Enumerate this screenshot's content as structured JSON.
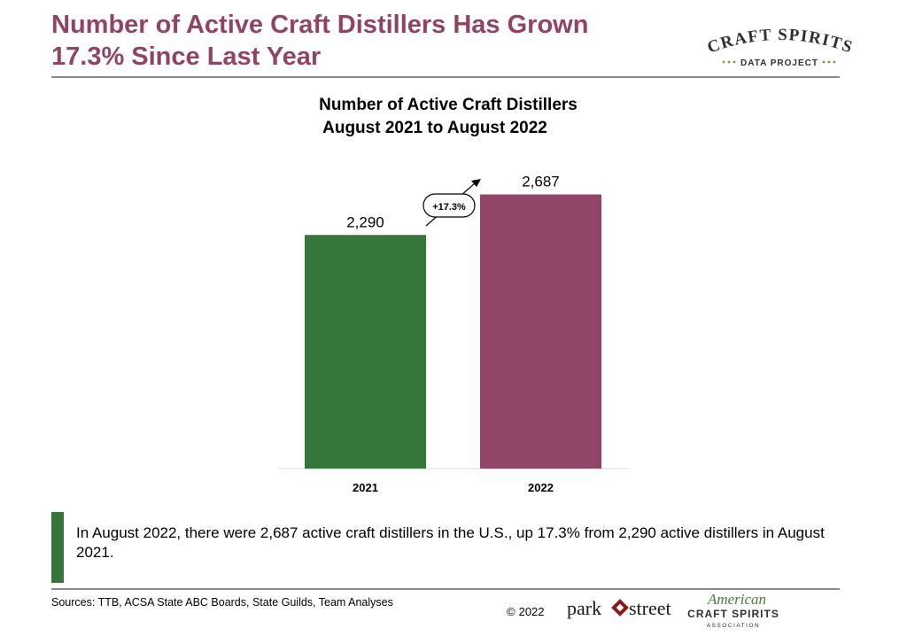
{
  "slide": {
    "title_line1": "Number of Active Craft Distillers Has Grown",
    "title_line2": "17.3% Since Last Year"
  },
  "logos": {
    "top_right": {
      "line1": "CRAFT SPIRITS",
      "line2": "DATA PROJECT"
    },
    "footer_left": {
      "text_a": "park",
      "text_b": "street"
    },
    "footer_right": {
      "script": "American",
      "line1": "CRAFT SPIRITS",
      "line2": "ASSOCIATION"
    }
  },
  "chart_data": {
    "type": "bar",
    "title": "Number of Active Craft Distillers",
    "subtitle": "August 2021 to August 2022",
    "categories": [
      "2021",
      "2022"
    ],
    "values": [
      2290,
      2687
    ],
    "value_labels": [
      "2,290",
      "2,687"
    ],
    "bar_colors": [
      "#35763a",
      "#904466"
    ],
    "growth_annotation": "+17.3%",
    "ylim": [
      0,
      2900
    ],
    "grid": false,
    "legend": "none"
  },
  "callout": {
    "text": "In August 2022, there were 2,687 active craft distillers in the U.S., up 17.3% from 2,290 active distillers in August 2021.",
    "bar_color": "#35763a"
  },
  "footer": {
    "sources": "Sources: TTB, ACSA  State ABC Boards, State Guilds, Team Analyses",
    "copyright_symbol": "©",
    "copyright_year": "2022"
  },
  "colors": {
    "title": "#8f4466",
    "green": "#35763a",
    "plum": "#904466",
    "rule": "#8a8a8a"
  }
}
